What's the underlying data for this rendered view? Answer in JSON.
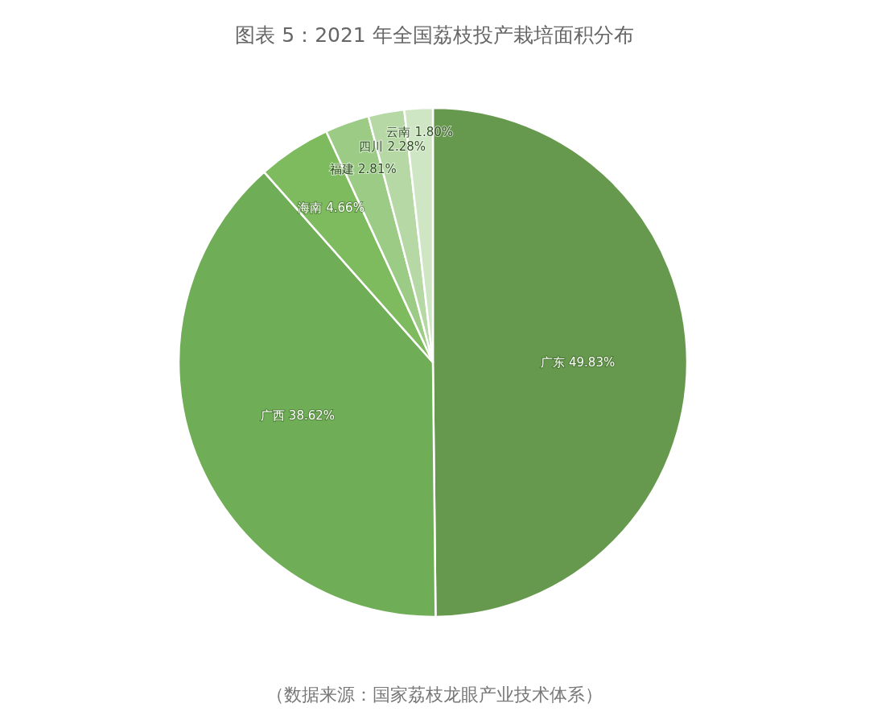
{
  "chart_data": {
    "type": "pie",
    "title": "图表 5：2021 年全国荔枝投产栽培面积分布",
    "categories": [
      "广东",
      "广西",
      "海南",
      "福建",
      "四川",
      "云南"
    ],
    "values": [
      49.83,
      38.62,
      4.66,
      2.81,
      2.28,
      1.8
    ],
    "colors": [
      "#66994d",
      "#70ad57",
      "#7dbb5e",
      "#9ccb86",
      "#b5d8a5",
      "#cfe6c4"
    ],
    "value_labels": [
      "49.83%",
      "38.62%",
      "4.66%",
      "2.81%",
      "2.28%",
      "1.80%"
    ],
    "annotations": [
      "（数据来源：国家荔枝龙眼产业技术体系）"
    ]
  }
}
